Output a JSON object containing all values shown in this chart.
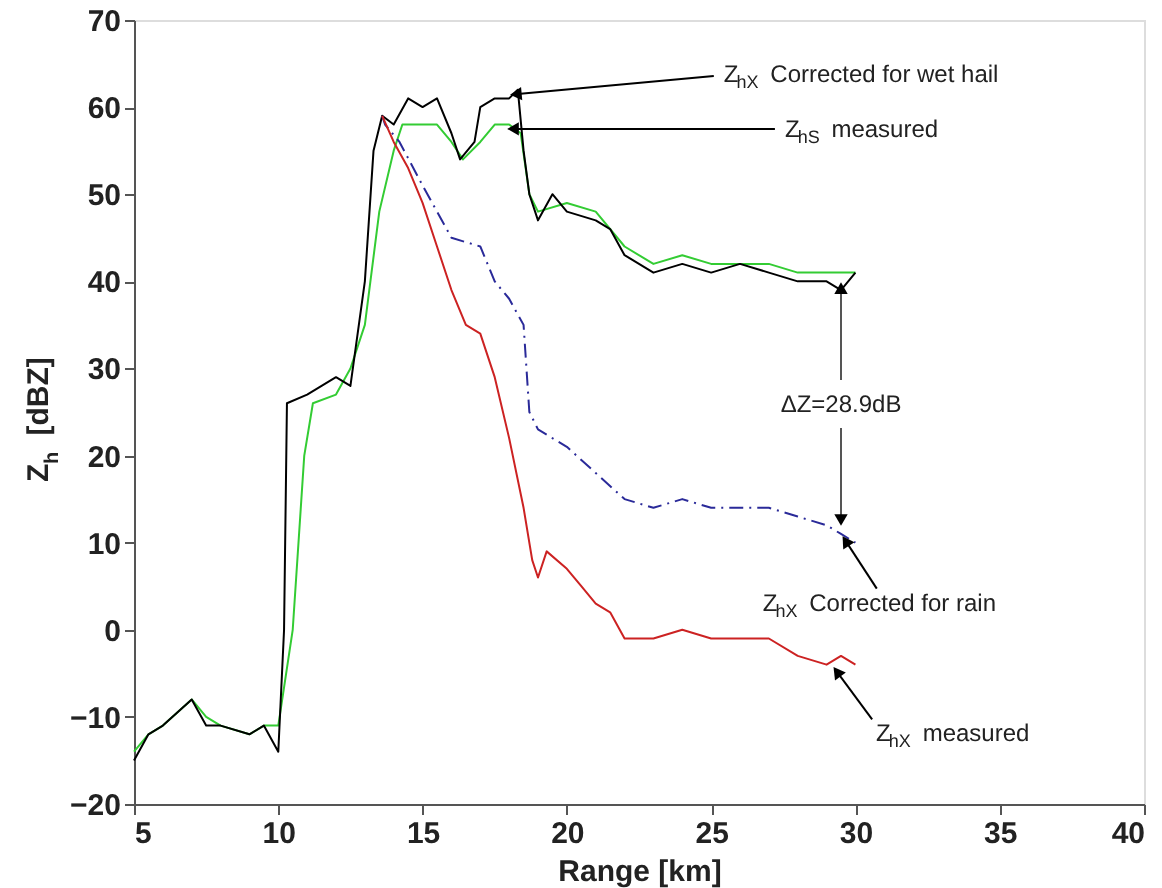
{
  "chart_data": {
    "type": "line",
    "xlabel": "Range [km]",
    "ylabel": "Z$_{h}$ [dBZ]",
    "xlim": [
      5,
      40
    ],
    "ylim": [
      -20,
      70
    ],
    "xticks": [
      5,
      10,
      15,
      20,
      25,
      30,
      35,
      40
    ],
    "yticks": [
      -20,
      -10,
      0,
      10,
      20,
      30,
      40,
      50,
      60,
      70
    ],
    "grid": false,
    "marker": "none",
    "series": [
      {
        "color": "#33cc33",
        "line_style": "solid",
        "x": [
          5,
          5.5,
          6,
          7,
          7.5,
          8,
          9,
          9.5,
          10,
          10.5,
          10.9,
          11.2,
          12,
          12.5,
          13,
          13.5,
          14,
          14.3,
          15,
          15.5,
          16,
          16.4,
          17,
          17.5,
          18,
          18.4,
          18.7,
          19,
          20,
          21,
          22,
          23,
          24,
          25,
          26,
          27,
          28,
          29,
          30
        ],
        "values": [
          -14,
          -12,
          -11,
          -8,
          -10,
          -11,
          -12,
          -11,
          -11,
          0,
          20,
          26,
          27,
          30,
          35,
          48,
          55,
          58,
          58,
          58,
          56,
          54,
          56,
          58,
          58,
          57,
          50,
          48,
          49,
          48,
          44,
          42,
          43,
          42,
          42,
          42,
          41,
          41,
          41
        ]
      },
      {
        "color": "#000000",
        "line_style": "solid",
        "x": [
          5,
          5.5,
          6,
          7,
          7.5,
          8,
          9,
          9.5,
          10,
          10.2,
          10.3,
          11,
          12,
          12.5,
          13,
          13.3,
          13.6,
          14,
          14.5,
          15,
          15.5,
          16,
          16.3,
          16.8,
          17,
          17.5,
          18,
          18.3,
          18.5,
          18.7,
          19,
          19.5,
          20,
          21,
          21.5,
          22,
          23,
          24,
          25,
          26,
          27,
          28,
          29,
          29.5,
          30
        ],
        "values": [
          -15,
          -12,
          -11,
          -8,
          -11,
          -11,
          -12,
          -11,
          -14,
          0,
          26,
          27,
          29,
          28,
          40,
          55,
          59,
          58,
          61,
          60,
          61,
          57,
          54,
          56,
          60,
          61,
          61,
          62,
          55,
          50,
          47,
          50,
          48,
          47,
          46,
          43,
          41,
          42,
          41,
          42,
          41,
          40,
          40,
          39,
          41
        ]
      },
      {
        "color": "#2a2a99",
        "line_style": "dashed",
        "x": [
          13.6,
          13.7,
          14.2,
          15,
          15.5,
          16,
          17,
          17.5,
          18,
          18.5,
          18.7,
          19,
          20,
          21,
          22,
          23,
          24,
          25,
          26,
          27,
          28,
          29,
          29.5,
          30
        ],
        "values": [
          59,
          58,
          56,
          51,
          48,
          45,
          44,
          40,
          38,
          35,
          25,
          23,
          21,
          18,
          15,
          14,
          15,
          14,
          14,
          14,
          13,
          12,
          11,
          10
        ]
      },
      {
        "color": "#cc2222",
        "line_style": "solid",
        "x": [
          13.6,
          14,
          14.5,
          15,
          15.5,
          16,
          16.5,
          17,
          17.5,
          18,
          18.5,
          18.8,
          19,
          19.3,
          20,
          20.5,
          21,
          21.5,
          22,
          23,
          24,
          25,
          26,
          27,
          28,
          29,
          29.5,
          30
        ],
        "values": [
          59,
          56,
          53,
          49,
          44,
          39,
          35,
          34,
          29,
          22,
          14,
          8,
          6,
          9,
          7,
          5,
          3,
          2,
          -1,
          -1,
          0,
          -1,
          -1,
          -1,
          -3,
          -4,
          -3,
          -4
        ]
      }
    ],
    "annotations": [
      {
        "text": "Z$_{hX}$ Corrected for wet hail",
        "x": 18.3,
        "y": 61.5
      },
      {
        "text": "Z$_{hS}$ measured",
        "x": 18.2,
        "y": 57.5
      },
      {
        "text": "ΔZ=28.9dB",
        "x": 29.5,
        "y": 39
      },
      {
        "text": "Z$_{hX}$ Corrected for rain",
        "x": 29.7,
        "y": 10
      },
      {
        "text": "Z$_{hX}$ measured",
        "x": 29.4,
        "y": -5
      }
    ]
  }
}
